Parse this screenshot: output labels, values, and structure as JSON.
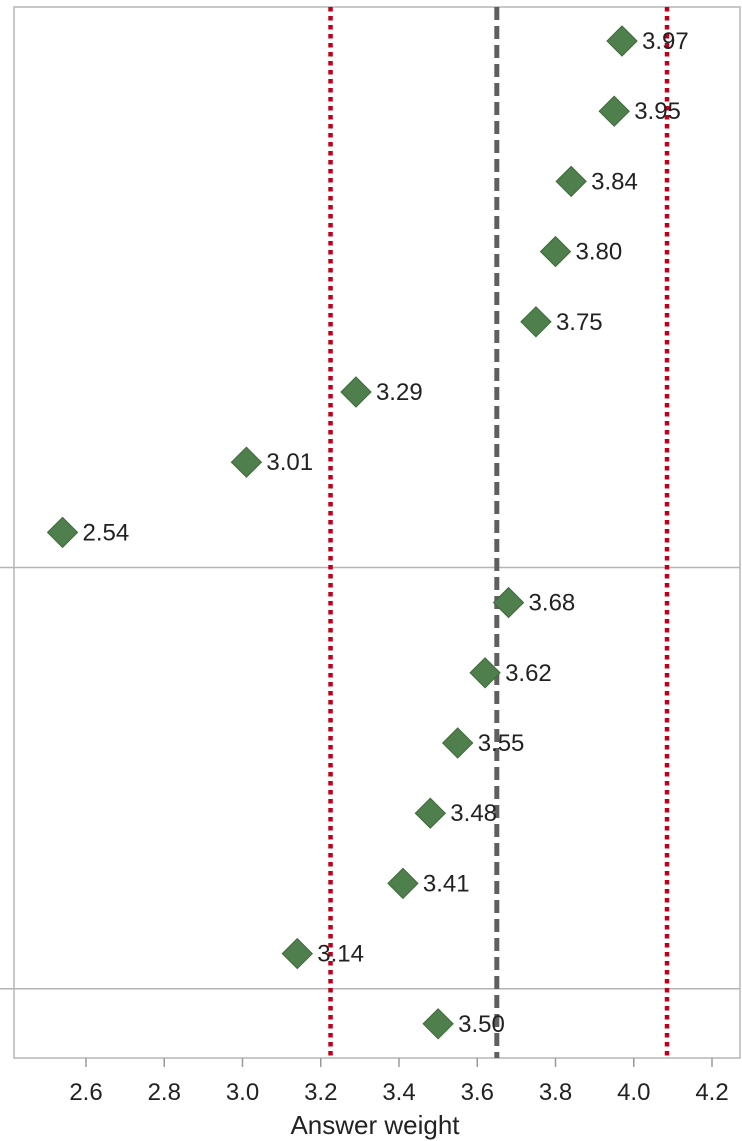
{
  "chart_data": {
    "type": "scatter",
    "title": "",
    "xlabel": "Answer weight",
    "ylabel": "",
    "xlim": [
      2.42,
      4.24
    ],
    "x_ticks": [
      "2.6",
      "2.8",
      "3.0",
      "3.2",
      "3.4",
      "3.6",
      "3.8",
      "4.0",
      "4.2"
    ],
    "marker": "diamond",
    "marker_color": "#4f7f4c",
    "grid": false,
    "legend": "none",
    "panels": [
      {
        "points": [
          {
            "value": 3.97,
            "label": "3.97"
          },
          {
            "value": 3.95,
            "label": "3.95"
          },
          {
            "value": 3.84,
            "label": "3.84"
          },
          {
            "value": 3.8,
            "label": "3.80"
          },
          {
            "value": 3.75,
            "label": "3.75"
          },
          {
            "value": 3.29,
            "label": "3.29"
          },
          {
            "value": 3.01,
            "label": "3.01"
          },
          {
            "value": 2.54,
            "label": "2.54"
          }
        ]
      },
      {
        "points": [
          {
            "value": 3.68,
            "label": "3.68"
          },
          {
            "value": 3.62,
            "label": "3.62"
          },
          {
            "value": 3.55,
            "label": "3.55"
          },
          {
            "value": 3.48,
            "label": "3.48"
          },
          {
            "value": 3.41,
            "label": "3.41"
          },
          {
            "value": 3.14,
            "label": "3.14"
          }
        ]
      },
      {
        "points": [
          {
            "value": 3.5,
            "label": "3.50"
          }
        ]
      }
    ],
    "reference_lines": [
      {
        "value": 3.65,
        "style": "dashed",
        "color": "#5f5f5f"
      },
      {
        "value": 3.225,
        "style": "dotted",
        "color": "#c0001a"
      },
      {
        "value": 4.085,
        "style": "dotted",
        "color": "#c0001a"
      }
    ]
  }
}
